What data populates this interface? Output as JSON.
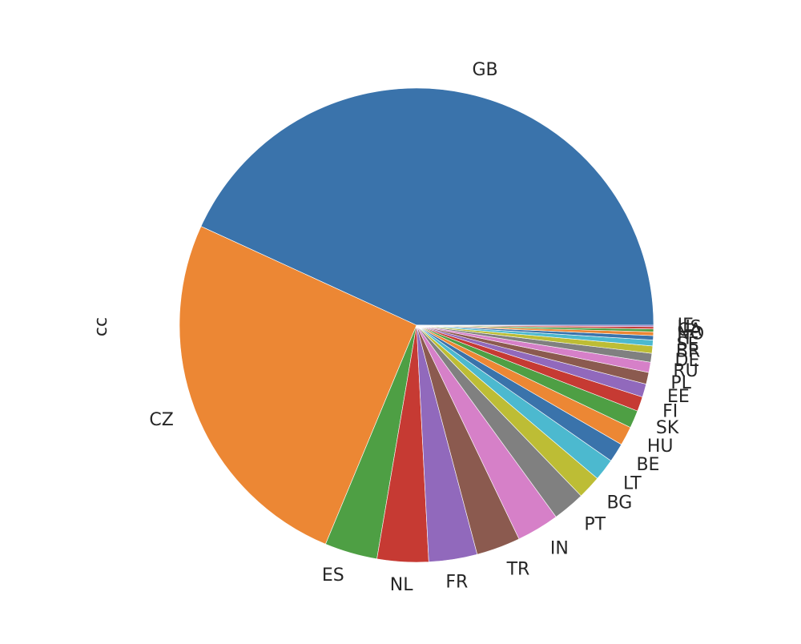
{
  "chart_data": {
    "type": "pie",
    "ylabel": "cc",
    "slices": [
      {
        "label": "GB",
        "value": 43.2,
        "color": "#3a73ab"
      },
      {
        "label": "CZ",
        "value": 25.6,
        "color": "#ec8734"
      },
      {
        "label": "ES",
        "value": 3.6,
        "color": "#4e9f44"
      },
      {
        "label": "NL",
        "value": 3.5,
        "color": "#c63a33"
      },
      {
        "label": "FR",
        "value": 3.3,
        "color": "#9169bc"
      },
      {
        "label": "TR",
        "value": 3.0,
        "color": "#8b5a4f"
      },
      {
        "label": "IN",
        "value": 2.9,
        "color": "#d680c8"
      },
      {
        "label": "PT",
        "value": 2.2,
        "color": "#808080"
      },
      {
        "label": "BG",
        "value": 1.6,
        "color": "#bdbd35"
      },
      {
        "label": "LT",
        "value": 1.5,
        "color": "#4cb9cf"
      },
      {
        "label": "BE",
        "value": 1.3,
        "color": "#3a73ab"
      },
      {
        "label": "HU",
        "value": 1.3,
        "color": "#ec8734"
      },
      {
        "label": "SK",
        "value": 1.2,
        "color": "#4e9f44"
      },
      {
        "label": "FI",
        "value": 1.0,
        "color": "#c63a33"
      },
      {
        "label": "EE",
        "value": 0.9,
        "color": "#9169bc"
      },
      {
        "label": "PL",
        "value": 0.8,
        "color": "#8b5a4f"
      },
      {
        "label": "RU",
        "value": 0.7,
        "color": "#d680c8"
      },
      {
        "label": "DE",
        "value": 0.6,
        "color": "#808080"
      },
      {
        "label": "BR",
        "value": 0.5,
        "color": "#bdbd35"
      },
      {
        "label": "SE",
        "value": 0.4,
        "color": "#4cb9cf"
      },
      {
        "label": "IT",
        "value": 0.3,
        "color": "#3a73ab"
      },
      {
        "label": "NO",
        "value": 0.25,
        "color": "#ec8734"
      },
      {
        "label": "CA",
        "value": 0.2,
        "color": "#4e9f44"
      },
      {
        "label": "US",
        "value": 0.15,
        "color": "#c63a33"
      },
      {
        "label": "IE",
        "value": 0.1,
        "color": "#9169bc"
      }
    ]
  }
}
